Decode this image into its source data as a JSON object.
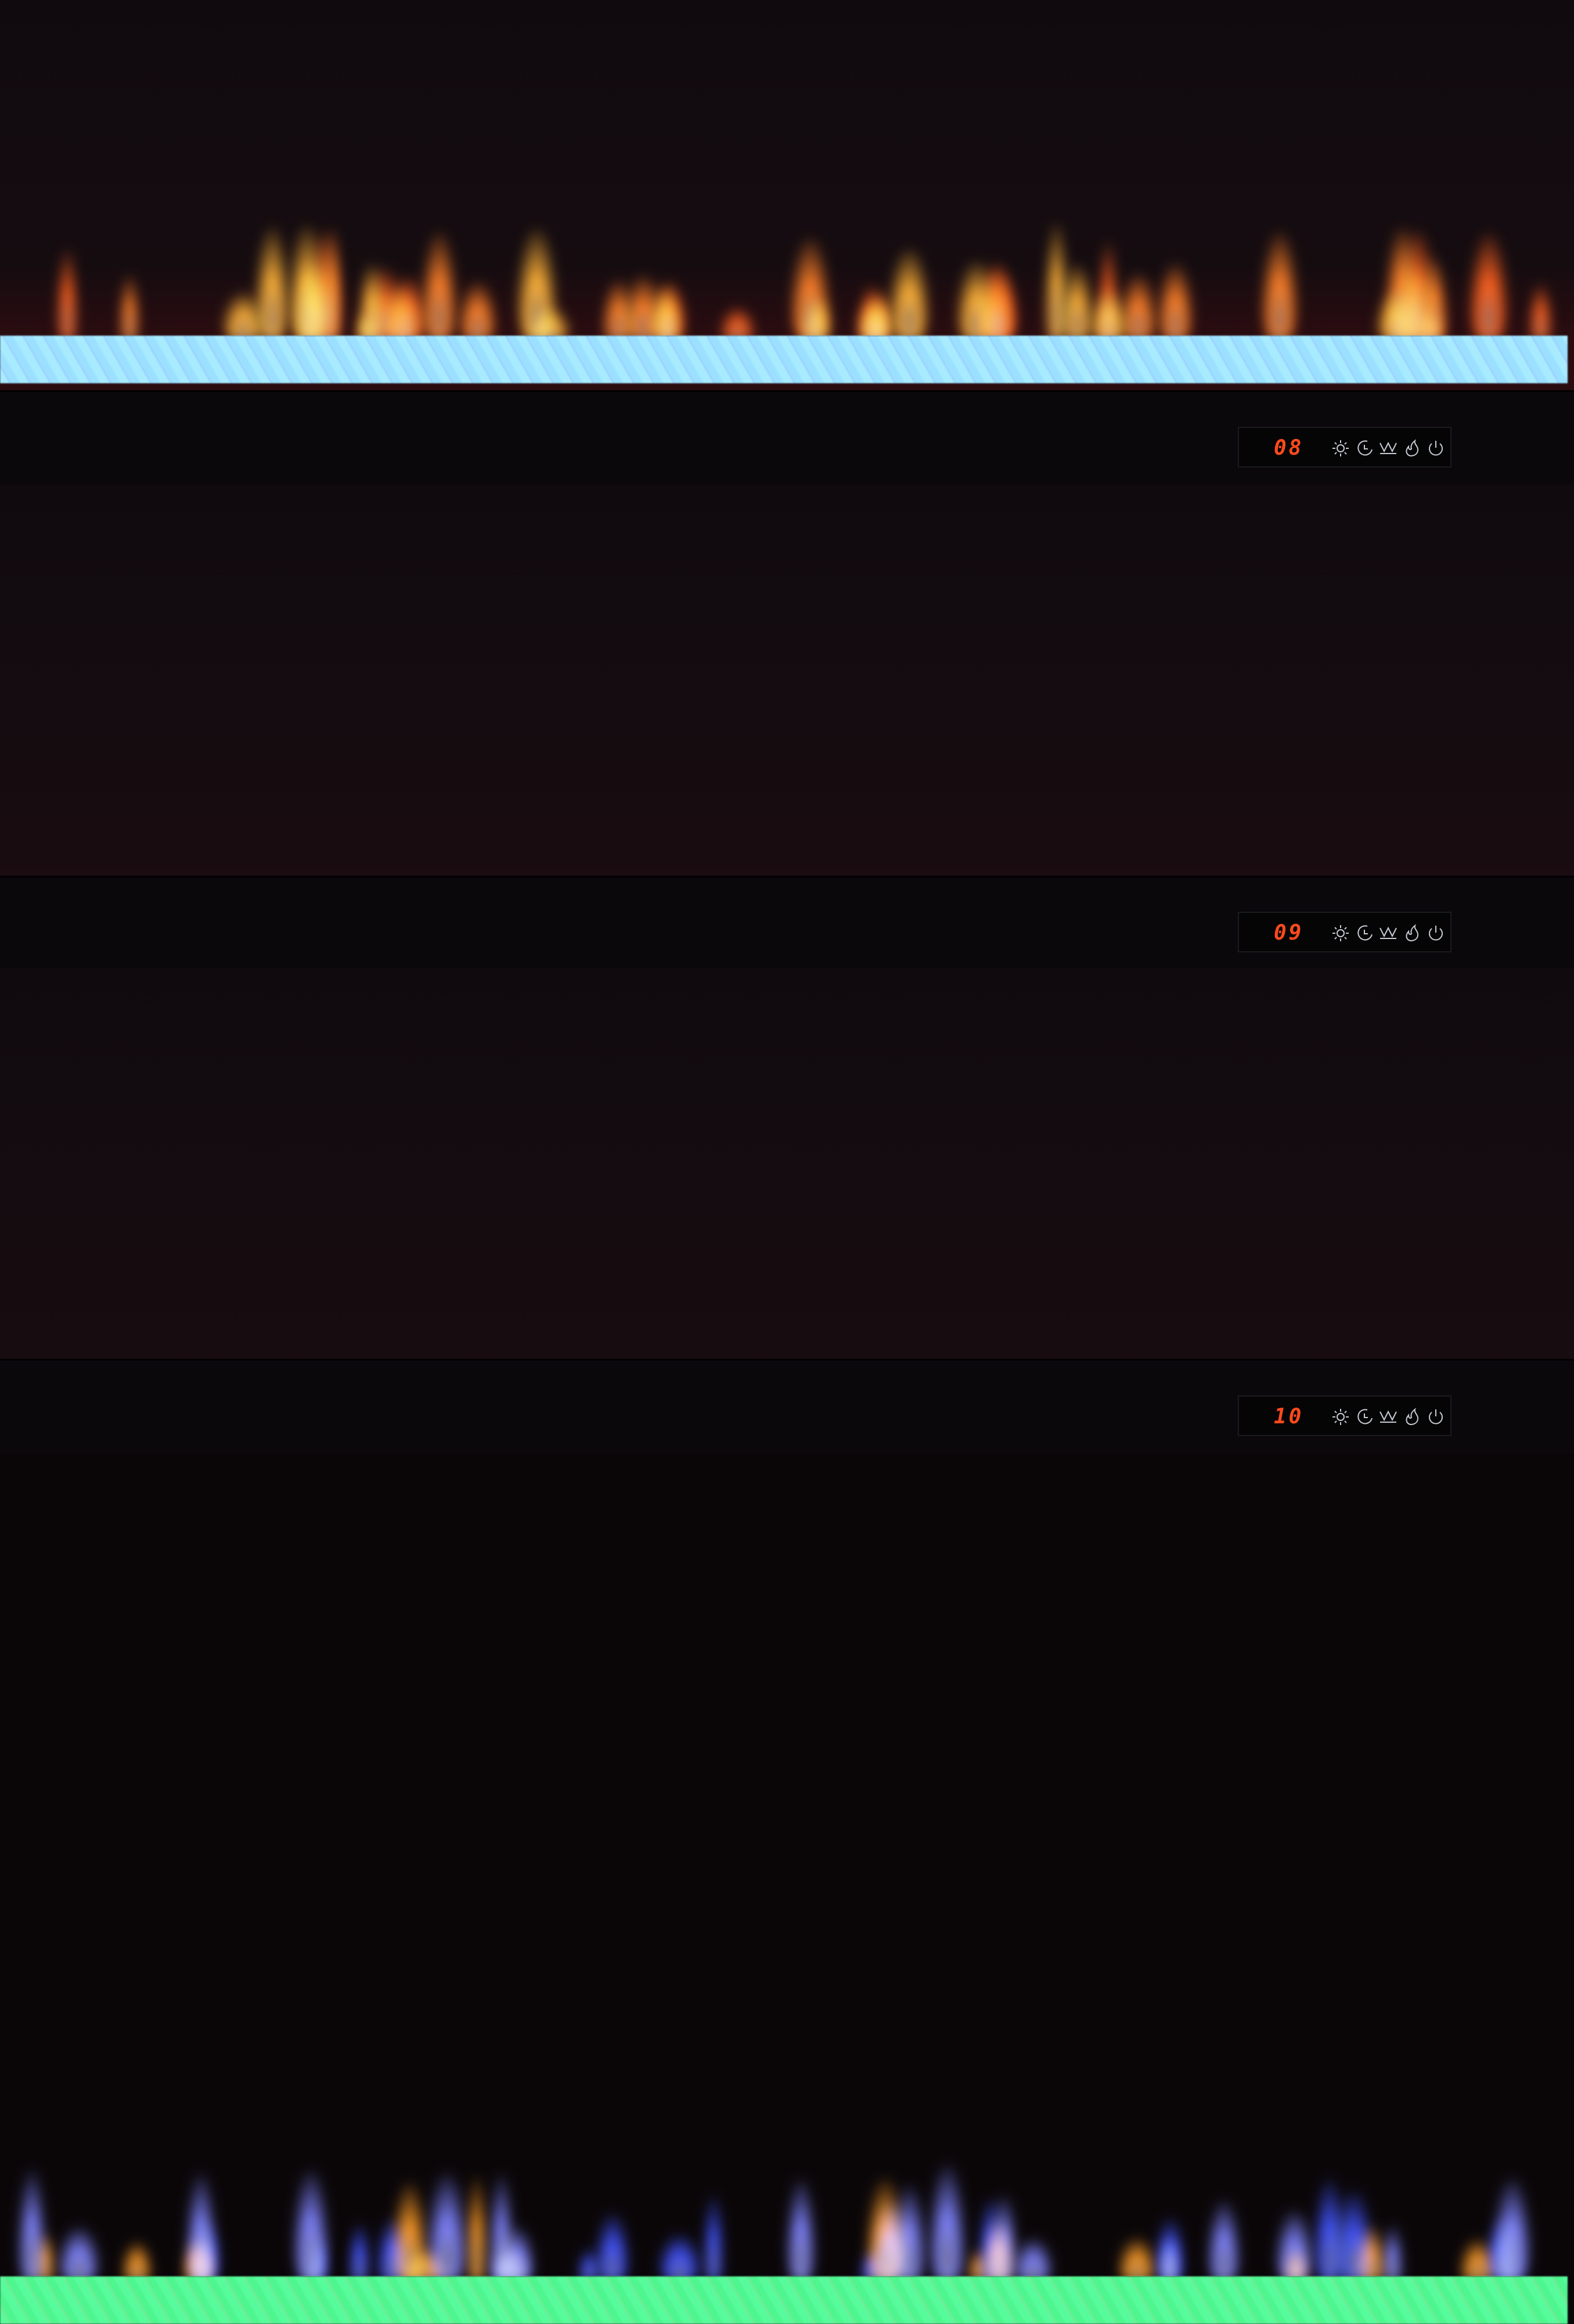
{
  "panels": [
    {
      "display": "08",
      "flame_colors": [
        "#ff7a1a",
        "#ffae2a",
        "#ff5a10"
      ],
      "bed_color": "#6ab8ff"
    },
    {
      "display": "09",
      "flame_colors": [
        "#ff2a50",
        "#ff3ab0",
        "#4a40ff"
      ],
      "bed_color": "#3fdca0"
    },
    {
      "display": "10",
      "flame_colors": [
        "#ff9a20",
        "#3a50ff",
        "#7a80ff"
      ],
      "bed_color": "#30e060"
    }
  ],
  "digit_color": "#ff4a1c",
  "icons": [
    "brightness-icon",
    "timer-icon",
    "heater-icon",
    "flame-icon",
    "power-icon"
  ]
}
